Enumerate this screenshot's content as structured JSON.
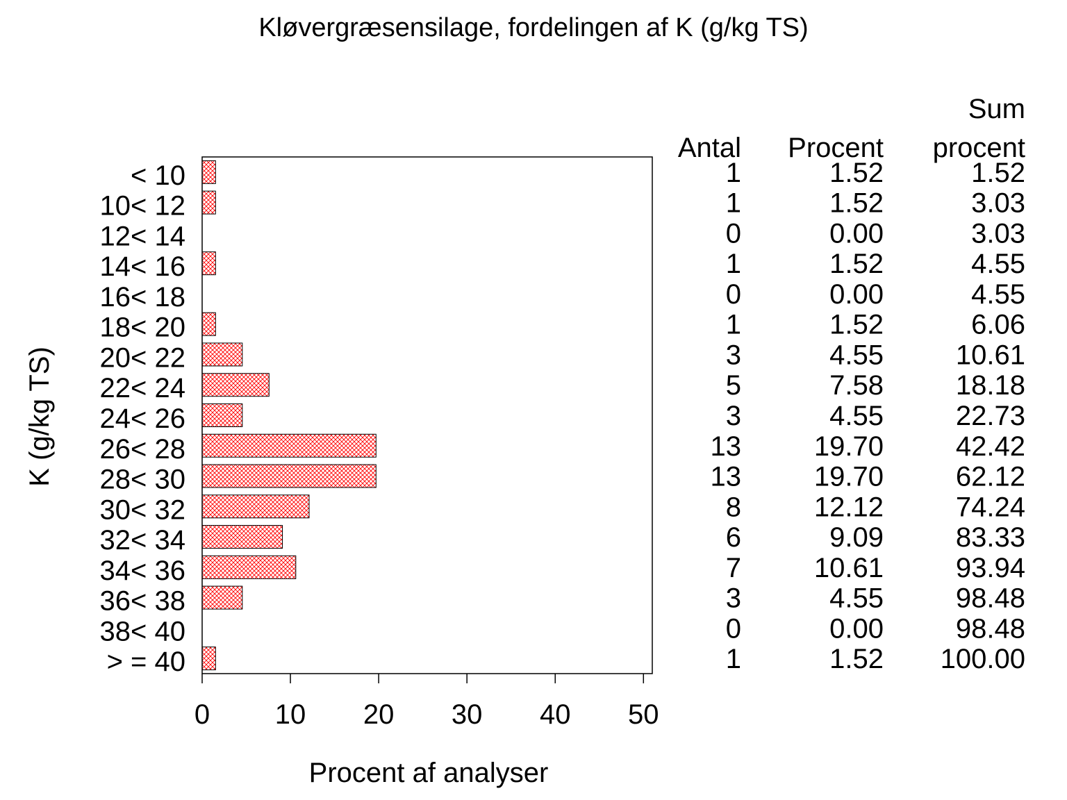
{
  "chart_data": {
    "type": "bar",
    "orientation": "horizontal",
    "title": "Kløvergræsensilage,  fordelingen  af  K  (g/kg  TS)",
    "ylabel": "K  (g/kg  TS)",
    "xlabel": "Procent  af  analyser",
    "xlim": [
      0,
      51
    ],
    "xticks": [
      "0",
      "10",
      "20",
      "30",
      "40",
      "50"
    ],
    "xtick_values": [
      0,
      10,
      20,
      30,
      40,
      50
    ],
    "grid": false,
    "bar_pattern": "red-crosshatch",
    "bar_color": "#ff0000",
    "categories": [
      "< 10",
      "10< 12",
      "12< 14",
      "14< 16",
      "16< 18",
      "18< 20",
      "20< 22",
      "22< 24",
      "24< 26",
      "26< 28",
      "28< 30",
      "30< 32",
      "32< 34",
      "34< 36",
      "36< 38",
      "38< 40",
      "> = 40"
    ],
    "values": [
      1.52,
      1.52,
      0.0,
      1.52,
      0.0,
      1.52,
      4.55,
      7.58,
      4.55,
      19.7,
      19.7,
      12.12,
      9.09,
      10.61,
      4.55,
      0.0,
      1.52
    ],
    "table": {
      "headers": {
        "antal": "Antal",
        "procent": "Procent",
        "sum_line1": "Sum",
        "sum_line2": "procent"
      },
      "antal": [
        "1",
        "1",
        "0",
        "1",
        "0",
        "1",
        "3",
        "5",
        "3",
        "13",
        "13",
        "8",
        "6",
        "7",
        "3",
        "0",
        "1"
      ],
      "procent": [
        "1.52",
        "1.52",
        "0.00",
        "1.52",
        "0.00",
        "1.52",
        "4.55",
        "7.58",
        "4.55",
        "19.70",
        "19.70",
        "12.12",
        "9.09",
        "10.61",
        "4.55",
        "0.00",
        "1.52"
      ],
      "sum_procent": [
        "1.52",
        "3.03",
        "3.03",
        "4.55",
        "4.55",
        "6.06",
        "10.61",
        "18.18",
        "22.73",
        "42.42",
        "62.12",
        "74.24",
        "83.33",
        "93.94",
        "98.48",
        "98.48",
        "100.00"
      ]
    }
  }
}
